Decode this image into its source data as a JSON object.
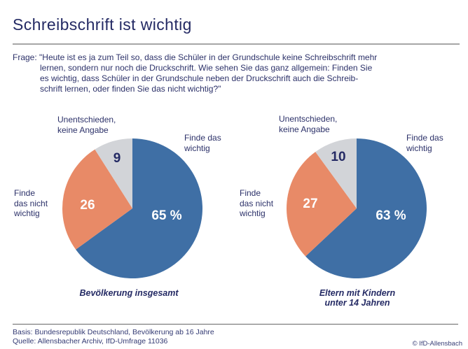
{
  "header": {
    "title": "Schreibschrift ist wichtig"
  },
  "question": {
    "lines": [
      "Frage: \"Heute ist es ja zum Teil so, dass die Schüler in der Grundschule keine Schreibschrift mehr",
      "lernen, sondern nur noch die Druckschrift. Wie sehen Sie das ganz allgemein: Finden Sie",
      "es wichtig, dass Schüler in der Grundschule neben der Druckschrift auch die Schreib-",
      "schrift lernen, oder finden Sie das nicht wichtig?\""
    ]
  },
  "colors": {
    "navy_text": "#2c3169",
    "pie_blue": "#3f6fa5",
    "pie_salmon": "#e88a67",
    "pie_gray": "#d2d4d8"
  },
  "chart_data": [
    {
      "type": "pie",
      "group_label": "Bevölkerung insgesamt",
      "caption_lines": [
        "Bevölkerung insgesamt"
      ],
      "unit": "%",
      "start_angle_deg": 0,
      "clockwise": true,
      "total": 100,
      "slices": [
        {
          "label": "Finde das wichtig",
          "label_lines": [
            "Finde das",
            "wichtig"
          ],
          "value": 65,
          "display": "65 %",
          "color": "#3f6fa5",
          "value_color": "#ffffff",
          "value_pos": [
            49,
            9
          ]
        },
        {
          "label": "Finde das nicht wichtig",
          "label_lines": [
            "Finde",
            "das nicht",
            "wichtig"
          ],
          "value": 26,
          "display": "26",
          "color": "#e88a67",
          "value_color": "#ffffff",
          "value_pos": [
            -64,
            -6
          ]
        },
        {
          "label": "Unentschieden, keine Angabe",
          "label_lines": [
            "Unentschieden,",
            "keine Angabe"
          ],
          "value": 9,
          "display": "9",
          "color": "#d2d4d8",
          "value_color": "#242a64",
          "value_pos": [
            -22,
            -73
          ]
        }
      ]
    },
    {
      "type": "pie",
      "group_label": "Eltern mit Kindern unter 14 Jahren",
      "caption_lines": [
        "Eltern mit Kindern",
        "unter 14 Jahren"
      ],
      "unit": "%",
      "start_angle_deg": 0,
      "clockwise": true,
      "total": 100,
      "slices": [
        {
          "label": "Finde das wichtig",
          "label_lines": [
            "Finde das",
            "wichtig"
          ],
          "value": 63,
          "display": "63 %",
          "color": "#3f6fa5",
          "value_color": "#ffffff",
          "value_pos": [
            49,
            9
          ]
        },
        {
          "label": "Finde das nicht wichtig",
          "label_lines": [
            "Finde",
            "das nicht",
            "wichtig"
          ],
          "value": 27,
          "display": "27",
          "color": "#e88a67",
          "value_color": "#ffffff",
          "value_pos": [
            -66,
            -8
          ]
        },
        {
          "label": "Unentschieden, keine Angabe",
          "label_lines": [
            "Unentschieden,",
            "keine Angabe"
          ],
          "value": 10,
          "display": "10",
          "color": "#d2d4d8",
          "value_color": "#242a64",
          "value_pos": [
            -26,
            -75
          ]
        }
      ]
    }
  ],
  "footer": {
    "basis": "Basis: Bundesrepublik Deutschland, Bevölkerung ab 16 Jahre",
    "quelle": "Quelle: Allensbacher Archiv, IfD-Umfrage 11036",
    "copyright": "© IfD-Allensbach"
  }
}
